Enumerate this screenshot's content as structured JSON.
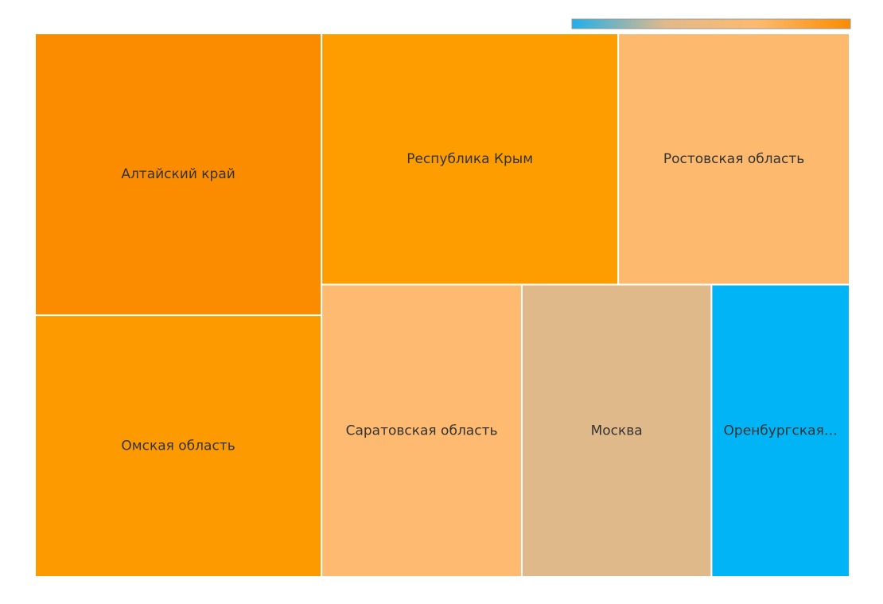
{
  "chart_data": {
    "type": "treemap",
    "categories": [
      "Алтайский край",
      "Омская область",
      "Республика Крым",
      "Ростовская область",
      "Саратовская область",
      "Москва",
      "Оренбургская…"
    ],
    "values": [
      18.2,
      16.9,
      16.8,
      13.1,
      13.2,
      12.5,
      9.1
    ],
    "colors": [
      "#fb8c00",
      "#fd9a00",
      "#fd9d00",
      "#fdba6e",
      "#fdba70",
      "#e0b98a",
      "#00b4f6"
    ],
    "color_scale": [
      "#1fb0ea",
      "#e0b98a",
      "#fdba6e",
      "#fb8c00"
    ]
  }
}
